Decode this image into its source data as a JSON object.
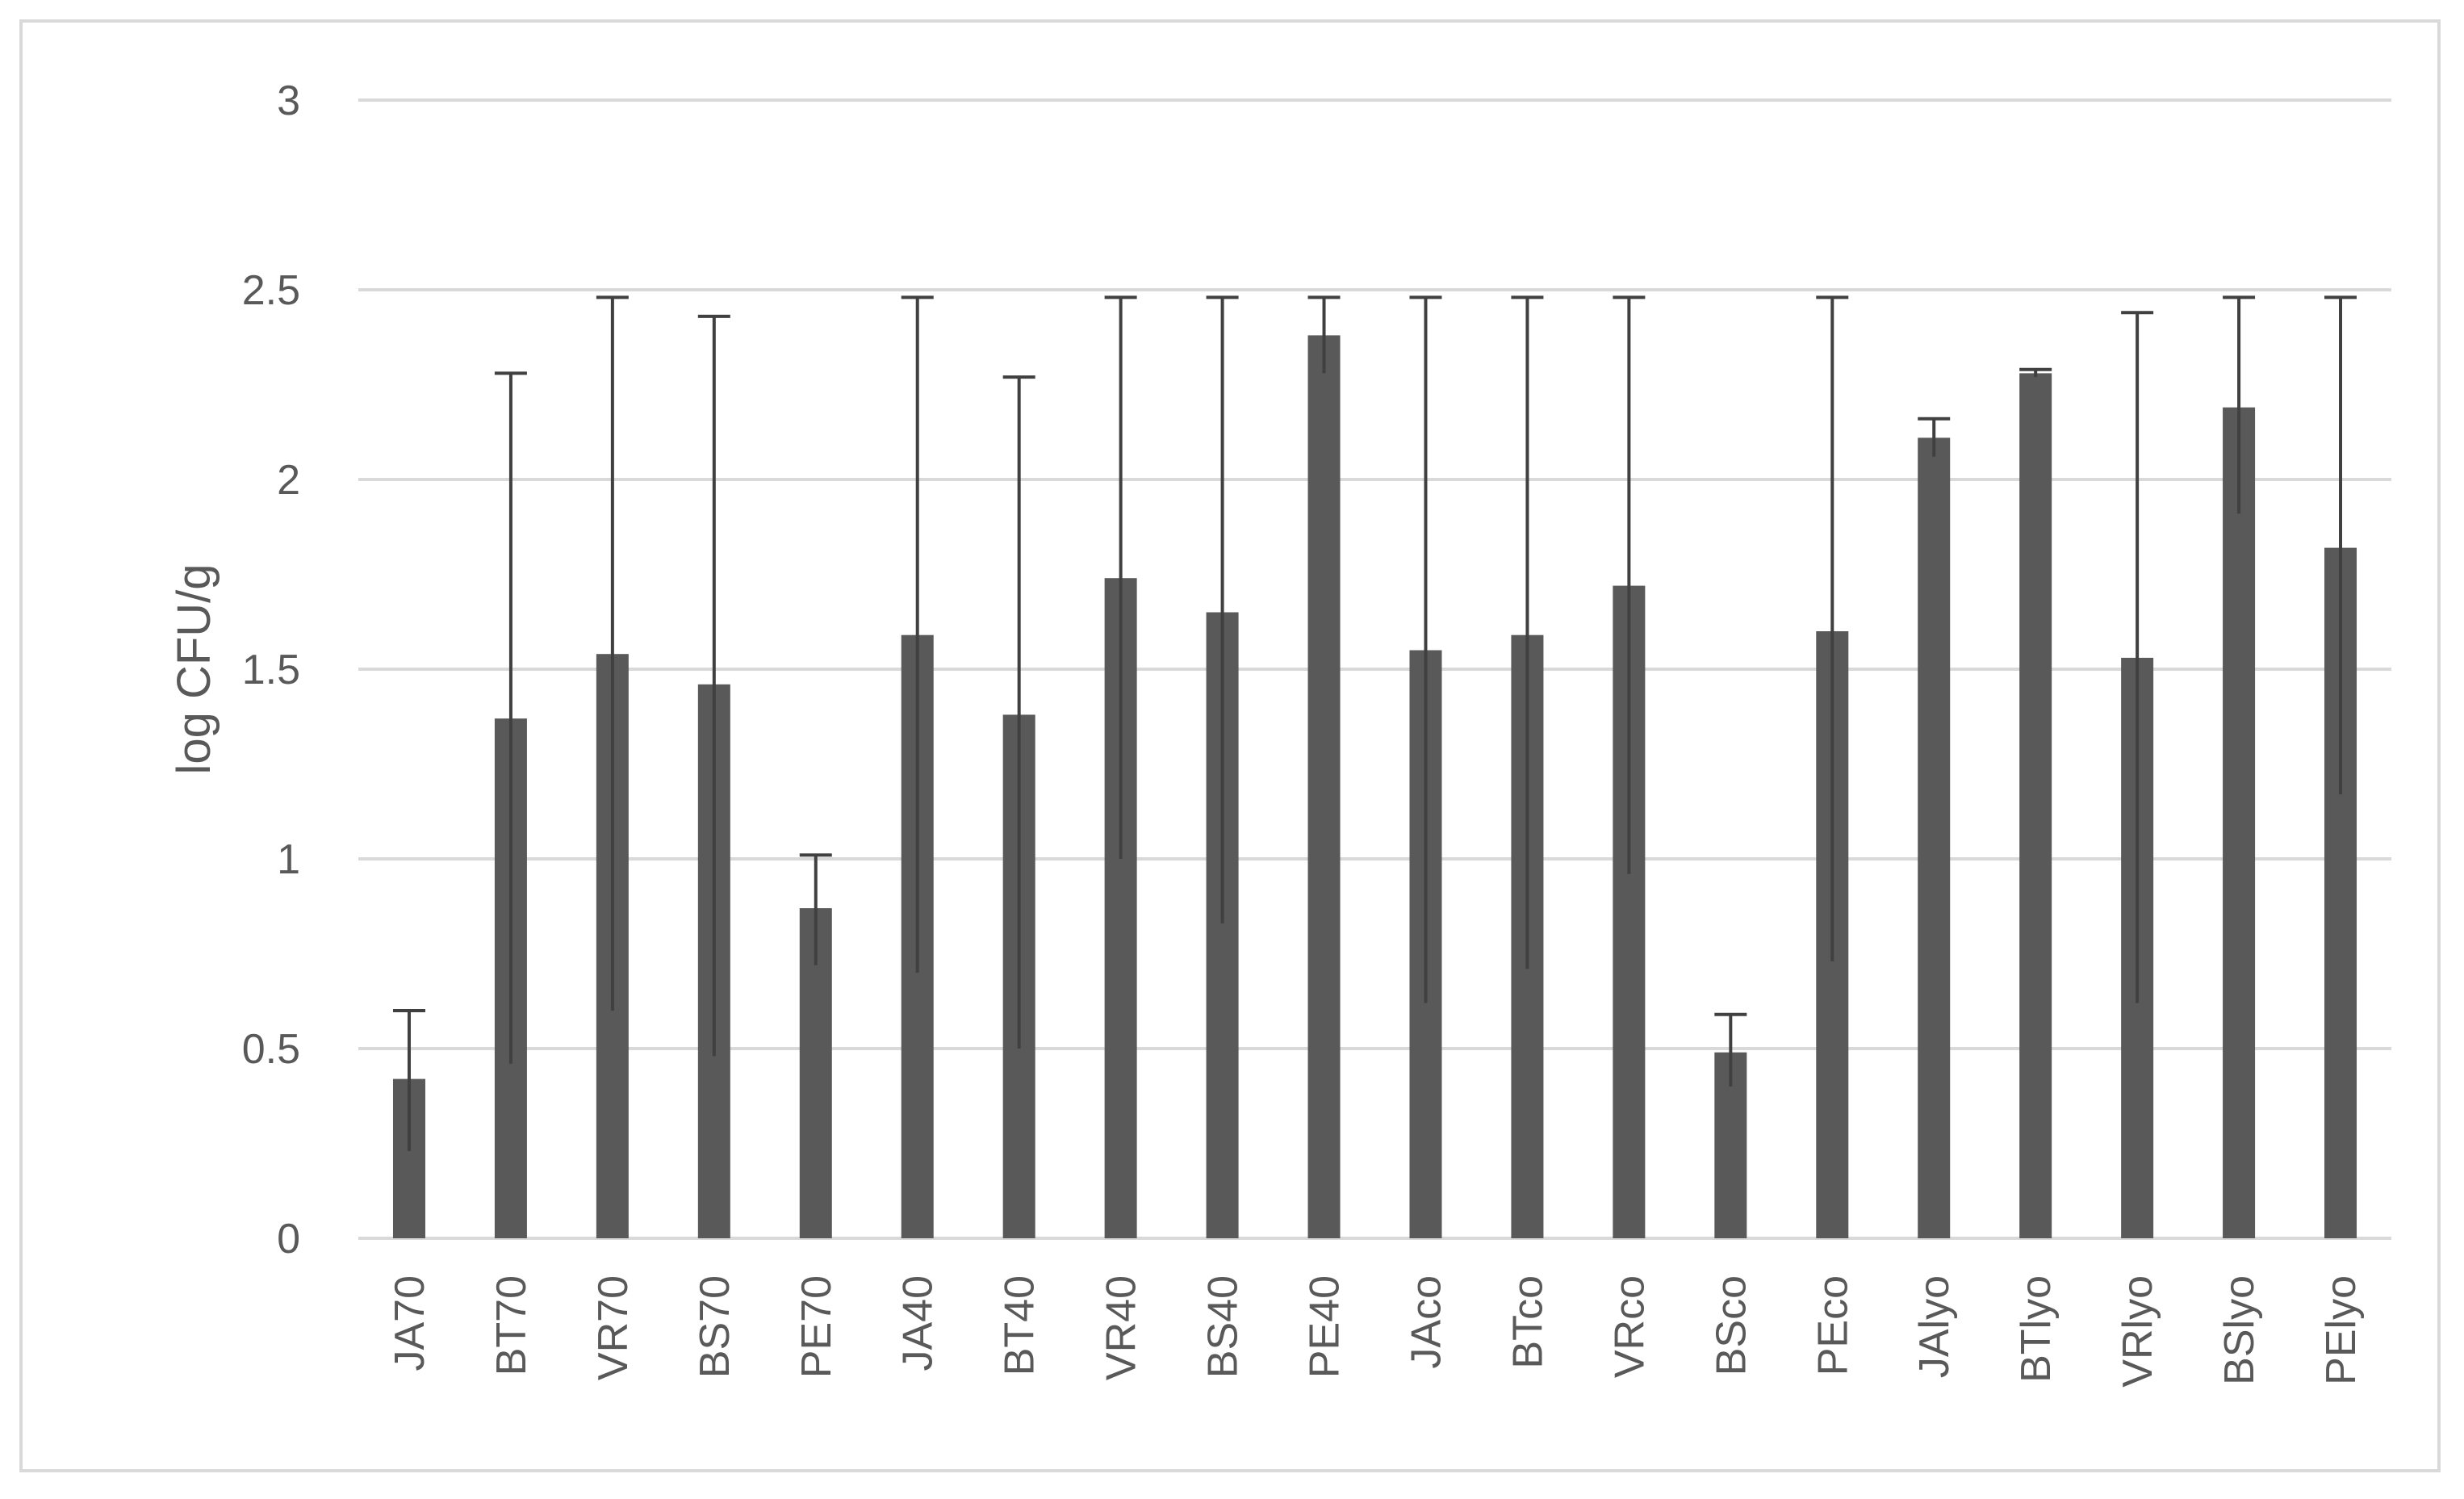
{
  "chart_data": {
    "type": "bar",
    "title": "",
    "xlabel": "",
    "ylabel": "log CFU/g",
    "ylim": [
      0,
      3
    ],
    "yticks": [
      0,
      0.5,
      1,
      1.5,
      2,
      2.5,
      3
    ],
    "ytick_labels": [
      "0",
      "0.5",
      "1",
      "1.5",
      "2",
      "2.5",
      "3"
    ],
    "grid": true,
    "legend": "none",
    "bar_color": "#595959",
    "grid_color": "#d9d9d9",
    "categories": [
      "JA70",
      "BT70",
      "VR70",
      "BS70",
      "PE70",
      "JA40",
      "BT40",
      "VR40",
      "BS40",
      "PE40",
      "JAco",
      "BTco",
      "VRco",
      "BSco",
      "PEco",
      "JAlyo",
      "BTlyo",
      "VRlyo",
      "BSlyo",
      "PElyo"
    ],
    "values": [
      0.42,
      1.37,
      1.54,
      1.46,
      0.87,
      1.59,
      1.38,
      1.74,
      1.65,
      2.38,
      1.55,
      1.59,
      1.72,
      0.49,
      1.6,
      2.11,
      2.28,
      1.53,
      2.19,
      1.82
    ],
    "error_upper": [
      0.6,
      2.28,
      2.48,
      2.43,
      1.01,
      2.48,
      2.27,
      2.48,
      2.48,
      2.48,
      2.48,
      2.48,
      2.48,
      0.59,
      2.48,
      2.16,
      2.29,
      2.44,
      2.48,
      2.48
    ],
    "error_lower": [
      0.23,
      0.46,
      0.6,
      0.48,
      0.72,
      0.7,
      0.5,
      1.0,
      0.83,
      2.28,
      0.62,
      0.71,
      0.96,
      0.4,
      0.73,
      2.06,
      2.27,
      0.62,
      1.91,
      1.17
    ]
  }
}
